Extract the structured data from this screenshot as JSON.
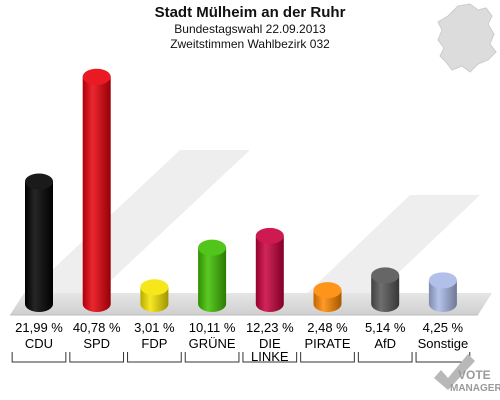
{
  "chart_data": {
    "type": "bar",
    "title": "Stadt Mülheim an der Ruhr",
    "subtitle": "Bundestagswahl 22.09.2013",
    "subtitle2": "Zweitstimmen Wahlbezirk 032",
    "categories": [
      "CDU",
      "SPD",
      "FDP",
      "GRÜNE",
      "DIE LINKE",
      "PIRATE",
      "AfD",
      "Sonstige"
    ],
    "values": [
      21.99,
      40.78,
      3.01,
      10.11,
      12.23,
      2.48,
      5.14,
      4.25
    ],
    "value_labels": [
      "21,99 %",
      "40,78 %",
      "3,01 %",
      "10,11 %",
      "12,23 %",
      "2,48 %",
      "5,14 %",
      "4,25 %"
    ],
    "colors": [
      "#000000",
      "#e8000b",
      "#f5e400",
      "#3fbf00",
      "#c8003c",
      "#ff8800",
      "#555555",
      "#a9b8e6"
    ],
    "ylim": [
      0,
      42
    ]
  },
  "logo": {
    "line1": "VOTE",
    "line2": "MANAGER"
  }
}
